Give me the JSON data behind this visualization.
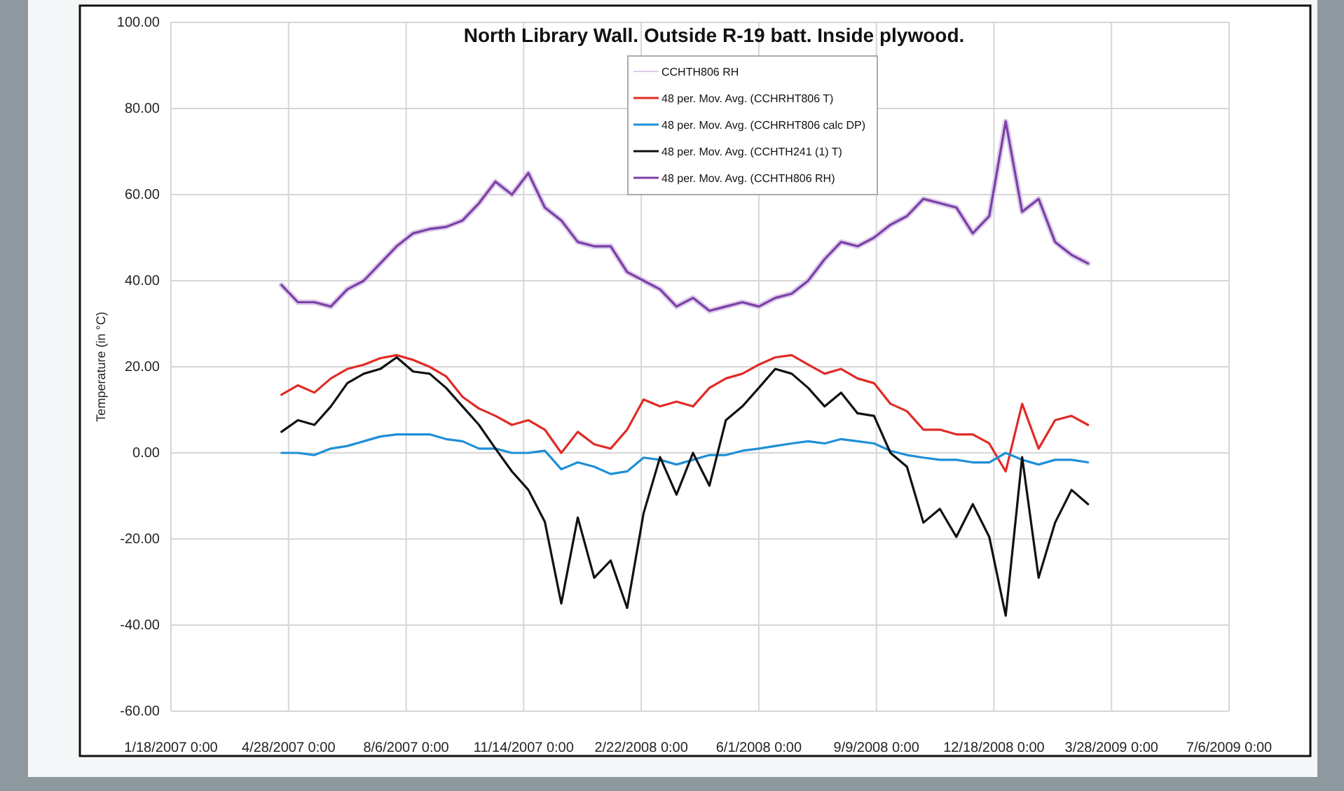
{
  "chart_data": {
    "type": "line",
    "title": "North Library Wall. Outside R-19 batt. Inside plywood.",
    "ylabel": "Temperature (in °C)",
    "x": [
      "2007-04-22",
      "2007-05-06",
      "2007-05-20",
      "2007-06-03",
      "2007-06-17",
      "2007-07-01",
      "2007-07-15",
      "2007-07-29",
      "2007-08-12",
      "2007-08-26",
      "2007-09-09",
      "2007-09-23",
      "2007-10-07",
      "2007-10-21",
      "2007-11-04",
      "2007-11-18",
      "2007-12-02",
      "2007-12-16",
      "2007-12-30",
      "2008-01-13",
      "2008-01-27",
      "2008-02-10",
      "2008-02-24",
      "2008-03-09",
      "2008-03-23",
      "2008-04-06",
      "2008-04-20",
      "2008-05-04",
      "2008-05-18",
      "2008-06-01",
      "2008-06-15",
      "2008-06-29",
      "2008-07-13",
      "2008-07-27",
      "2008-08-10",
      "2008-08-24",
      "2008-09-07",
      "2008-09-21",
      "2008-10-05",
      "2008-10-19",
      "2008-11-02",
      "2008-11-16",
      "2008-11-30",
      "2008-12-14",
      "2008-12-28",
      "2009-01-11",
      "2009-01-25",
      "2009-02-08",
      "2009-02-22",
      "2009-03-08"
    ],
    "series": [
      {
        "name": "CCHTH806 RH",
        "color": "#dccbea",
        "values": [
          39,
          35,
          35,
          34,
          38,
          40,
          44,
          48,
          51,
          52,
          52.5,
          54,
          58,
          63,
          60,
          65,
          57,
          54,
          49,
          48,
          48,
          42,
          40,
          38,
          34,
          36,
          33,
          34,
          35,
          34,
          36,
          37,
          40,
          45,
          49,
          48,
          50,
          53,
          55,
          59,
          58,
          57,
          51,
          55,
          77,
          56,
          59,
          49,
          46,
          44
        ]
      },
      {
        "name": "48 per. Mov. Avg. (CCHRHT806 T)",
        "color": "#e02b25",
        "values": [
          13.5,
          15.7,
          14,
          17.3,
          19.5,
          20.5,
          22,
          22.7,
          21.6,
          20,
          17.8,
          13,
          10.3,
          8.6,
          6.5,
          7.6,
          5.4,
          0,
          4.9,
          2,
          1,
          5.4,
          12.4,
          10.8,
          11.9,
          10.8,
          15.1,
          17.3,
          18.4,
          20.5,
          22.2,
          22.7,
          20.5,
          18.4,
          19.5,
          17.3,
          16.2,
          11.4,
          9.7,
          5.4,
          5.4,
          4.3,
          4.3,
          2.2,
          -4.3,
          11.4,
          1,
          7.6,
          8.6,
          6.5
        ]
      },
      {
        "name": "48 per. Mov. Avg. (CCHRHT806 calc DP)",
        "color": "#1f8fd6",
        "values": [
          0,
          0,
          -0.5,
          1,
          1.6,
          2.7,
          3.8,
          4.3,
          4.3,
          4.3,
          3.2,
          2.7,
          1,
          1,
          0,
          0,
          0.5,
          -3.8,
          -2.2,
          -3.2,
          -4.9,
          -4.3,
          -1.1,
          -1.6,
          -2.7,
          -1.6,
          -0.5,
          -0.5,
          0.5,
          1,
          1.6,
          2.2,
          2.7,
          2.2,
          3.2,
          2.7,
          2.2,
          0.5,
          -0.5,
          -1.1,
          -1.6,
          -1.6,
          -2.2,
          -2.2,
          0,
          -1.6,
          -2.7,
          -1.6,
          -1.6,
          -2.2
        ]
      },
      {
        "name": "48 per. Mov. Avg. (CCHTH241 (1) T)",
        "color": "#111111",
        "values": [
          4.9,
          7.6,
          6.5,
          10.8,
          16.2,
          18.4,
          19.5,
          22.2,
          18.9,
          18.4,
          15.1,
          10.8,
          6.5,
          1,
          -4.3,
          -8.6,
          -16,
          -35,
          -15,
          -29,
          -25,
          -36,
          -14,
          -1,
          -9.7,
          0,
          -7.6,
          7.6,
          10.8,
          15.1,
          19.5,
          18.4,
          15.1,
          10.8,
          14,
          9.2,
          8.6,
          0,
          -3.2,
          -16.2,
          -13,
          -19.5,
          -11.9,
          -19.5,
          -37.8,
          -1,
          -29,
          -16.2,
          -8.6,
          -11.9
        ]
      },
      {
        "name": "48 per. Mov. Avg. (CCHTH806 RH)",
        "color": "#7b3fa6",
        "values": [
          39,
          35,
          35,
          34,
          38,
          40,
          44,
          48,
          51,
          52,
          52.5,
          54,
          58,
          63,
          60,
          65,
          57,
          54,
          49,
          48,
          48,
          42,
          40,
          38,
          34,
          36,
          33,
          34,
          35,
          34,
          36,
          37,
          40,
          45,
          49,
          48,
          50,
          53,
          55,
          59,
          58,
          57,
          51,
          55,
          77,
          56,
          59,
          49,
          46,
          44
        ]
      }
    ],
    "xlim": [
      "2007-01-18",
      "2009-07-06"
    ],
    "xticks": [
      {
        "value": "2007-01-18",
        "label": "1/18/2007 0:00"
      },
      {
        "value": "2007-04-28",
        "label": "4/28/2007 0:00"
      },
      {
        "value": "2007-08-06",
        "label": "8/6/2007 0:00"
      },
      {
        "value": "2007-11-14",
        "label": "11/14/2007 0:00"
      },
      {
        "value": "2008-02-22",
        "label": "2/22/2008 0:00"
      },
      {
        "value": "2008-06-01",
        "label": "6/1/2008 0:00"
      },
      {
        "value": "2008-09-09",
        "label": "9/9/2008 0:00"
      },
      {
        "value": "2008-12-18",
        "label": "12/18/2008 0:00"
      },
      {
        "value": "2009-03-28",
        "label": "3/28/2009 0:00"
      },
      {
        "value": "2009-07-06",
        "label": "7/6/2009 0:00"
      }
    ],
    "ylim": [
      -60,
      100
    ],
    "yticks": [
      {
        "value": -60,
        "label": "-60.00"
      },
      {
        "value": -40,
        "label": "-40.00"
      },
      {
        "value": -20,
        "label": "-20.00"
      },
      {
        "value": 0,
        "label": "0.00"
      },
      {
        "value": 20,
        "label": "20.00"
      },
      {
        "value": 40,
        "label": "40.00"
      },
      {
        "value": 60,
        "label": "60.00"
      },
      {
        "value": 80,
        "label": "80.00"
      },
      {
        "value": 100,
        "label": "100.00"
      }
    ],
    "grid": true,
    "legend": "top",
    "marker": "none",
    "line_style": "solid"
  }
}
